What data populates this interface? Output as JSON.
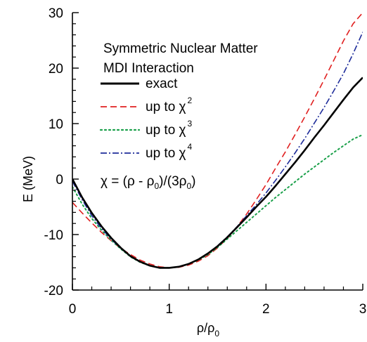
{
  "chart_data": {
    "type": "line",
    "title": "",
    "xlabel": {
      "base": "ρ/ρ",
      "sub": "0"
    },
    "ylabel": "E (MeV)",
    "xlim": [
      0,
      3
    ],
    "ylim": [
      -20,
      30
    ],
    "x_ticks": [
      0,
      1,
      2,
      3
    ],
    "x_tick_labels": [
      "0",
      "1",
      "2",
      "3"
    ],
    "y_ticks": [
      -20,
      -10,
      0,
      10,
      20,
      30
    ],
    "y_tick_labels": [
      "-20",
      "-10",
      "0",
      "10",
      "20",
      "30"
    ],
    "grid": false,
    "legend_position": "upper-left",
    "annotations": {
      "line1": "Symmetric Nuclear Matter",
      "line2": "MDI Interaction",
      "formula": {
        "p1": "χ = (ρ - ρ",
        "s1": "0",
        "p2": ")/(3ρ",
        "s2": "0",
        "p3": ")"
      }
    },
    "series": [
      {
        "name": "exact",
        "legend_sup": "",
        "color": "#000000",
        "dash": "solid",
        "x": [
          0.0,
          0.1,
          0.2,
          0.3,
          0.4,
          0.5,
          0.6,
          0.7,
          0.8,
          0.9,
          1.0,
          1.1,
          1.2,
          1.3,
          1.4,
          1.5,
          1.6,
          1.7,
          1.8,
          1.9,
          2.0,
          2.1,
          2.2,
          2.3,
          2.4,
          2.5,
          2.6,
          2.7,
          2.8,
          2.9,
          3.0
        ],
        "y": [
          0.0,
          -3.3,
          -6.1,
          -8.5,
          -10.6,
          -12.4,
          -13.9,
          -14.9,
          -15.6,
          -16.0,
          -16.0,
          -15.8,
          -15.3,
          -14.5,
          -13.4,
          -12.1,
          -10.5,
          -8.7,
          -6.9,
          -5.0,
          -3.2,
          -1.2,
          0.9,
          3.0,
          5.2,
          7.5,
          9.7,
          12.0,
          14.3,
          16.5,
          18.3
        ]
      },
      {
        "name": "up to χ",
        "legend_sup": "2",
        "color": "#e02020",
        "dash": "long-dash",
        "x": [
          0.0,
          0.1,
          0.2,
          0.3,
          0.4,
          0.5,
          0.6,
          0.7,
          0.8,
          0.9,
          1.0,
          1.1,
          1.2,
          1.3,
          1.4,
          1.5,
          1.6,
          1.7,
          1.8,
          1.9,
          2.0,
          2.1,
          2.2,
          2.3,
          2.4,
          2.5,
          2.6,
          2.7,
          2.8,
          2.9,
          3.0
        ],
        "y": [
          -4.2,
          -6.1,
          -7.9,
          -9.6,
          -11.1,
          -12.5,
          -13.6,
          -14.6,
          -15.3,
          -15.8,
          -16.0,
          -15.9,
          -15.5,
          -14.8,
          -13.8,
          -12.4,
          -10.7,
          -8.6,
          -6.3,
          -3.7,
          -1.0,
          2.0,
          4.9,
          8.0,
          11.2,
          14.5,
          17.9,
          21.4,
          24.9,
          28.0,
          30.0
        ]
      },
      {
        "name": "up to χ",
        "legend_sup": "3",
        "color": "#1aa04a",
        "dash": "dotted",
        "x": [
          0.0,
          0.1,
          0.2,
          0.3,
          0.4,
          0.5,
          0.6,
          0.7,
          0.8,
          0.9,
          1.0,
          1.1,
          1.2,
          1.3,
          1.4,
          1.5,
          1.6,
          1.7,
          1.8,
          1.9,
          2.0,
          2.1,
          2.2,
          2.3,
          2.4,
          2.5,
          2.6,
          2.7,
          2.8,
          2.9,
          3.0
        ],
        "y": [
          -1.4,
          -4.5,
          -7.1,
          -9.2,
          -11.0,
          -12.6,
          -14.0,
          -15.0,
          -15.6,
          -16.0,
          -16.0,
          -15.8,
          -15.3,
          -14.6,
          -13.6,
          -12.3,
          -10.8,
          -9.3,
          -7.8,
          -6.3,
          -4.8,
          -3.3,
          -1.9,
          -0.5,
          0.9,
          2.2,
          3.5,
          4.8,
          6.0,
          7.2,
          8.0
        ]
      },
      {
        "name": "up to χ",
        "legend_sup": "4",
        "color": "#1e2c9a",
        "dash": "dash-dot",
        "x": [
          0.0,
          0.1,
          0.2,
          0.3,
          0.4,
          0.5,
          0.6,
          0.7,
          0.8,
          0.9,
          1.0,
          1.1,
          1.2,
          1.3,
          1.4,
          1.5,
          1.6,
          1.7,
          1.8,
          1.9,
          2.0,
          2.1,
          2.2,
          2.3,
          2.4,
          2.5,
          2.6,
          2.7,
          2.8,
          2.9,
          3.0
        ],
        "y": [
          -0.4,
          -3.7,
          -6.6,
          -8.9,
          -10.8,
          -12.5,
          -13.9,
          -14.9,
          -15.6,
          -16.0,
          -16.0,
          -15.8,
          -15.3,
          -14.5,
          -13.4,
          -12.0,
          -10.4,
          -8.6,
          -6.6,
          -4.6,
          -2.5,
          -0.2,
          2.2,
          4.7,
          7.3,
          10.1,
          12.9,
          15.9,
          19.0,
          22.6,
          26.5
        ]
      }
    ]
  }
}
